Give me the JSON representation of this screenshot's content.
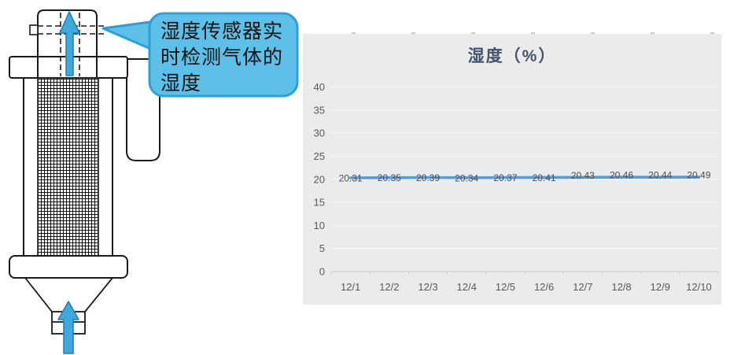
{
  "diagram": {
    "name": "humidity-sensor-filter-schematic",
    "callout": {
      "text": "湿度传感器实时检测气体的湿度",
      "fill": "#5cc0e8",
      "border": "#2b9fd6"
    },
    "arrow_color": "#3fa9dc",
    "arrow_border": "#1c7fb5",
    "outline_color": "#1a1a1a"
  },
  "chart_data": {
    "type": "line",
    "title": "湿度（%）",
    "categories": [
      "12/1",
      "12/2",
      "12/3",
      "12/4",
      "12/5",
      "12/6",
      "12/7",
      "12/8",
      "12/9",
      "12/10"
    ],
    "series": [
      {
        "name": "湿度",
        "values": [
          20.31,
          20.35,
          20.39,
          20.34,
          20.37,
          20.41,
          20.43,
          20.46,
          20.44,
          20.49
        ]
      }
    ],
    "data_labels": [
      "20.31",
      "20.35",
      "20.39",
      "20.34",
      "20.37",
      "20.41",
      "20.43",
      "20.46",
      "20.44",
      "20.49"
    ],
    "yticks": [
      0,
      5,
      10,
      15,
      20,
      25,
      30,
      35,
      40
    ],
    "ylim": [
      0,
      40
    ],
    "grid": true,
    "legend": "none",
    "colors": {
      "background": "#ebebeb",
      "line": "#5b9bd5",
      "title": "#44546a",
      "axis_text": "#595959",
      "gridline": "#f4f4f4",
      "axis_line": "#d6d6d6",
      "data_label": "#4d4d4d"
    }
  }
}
